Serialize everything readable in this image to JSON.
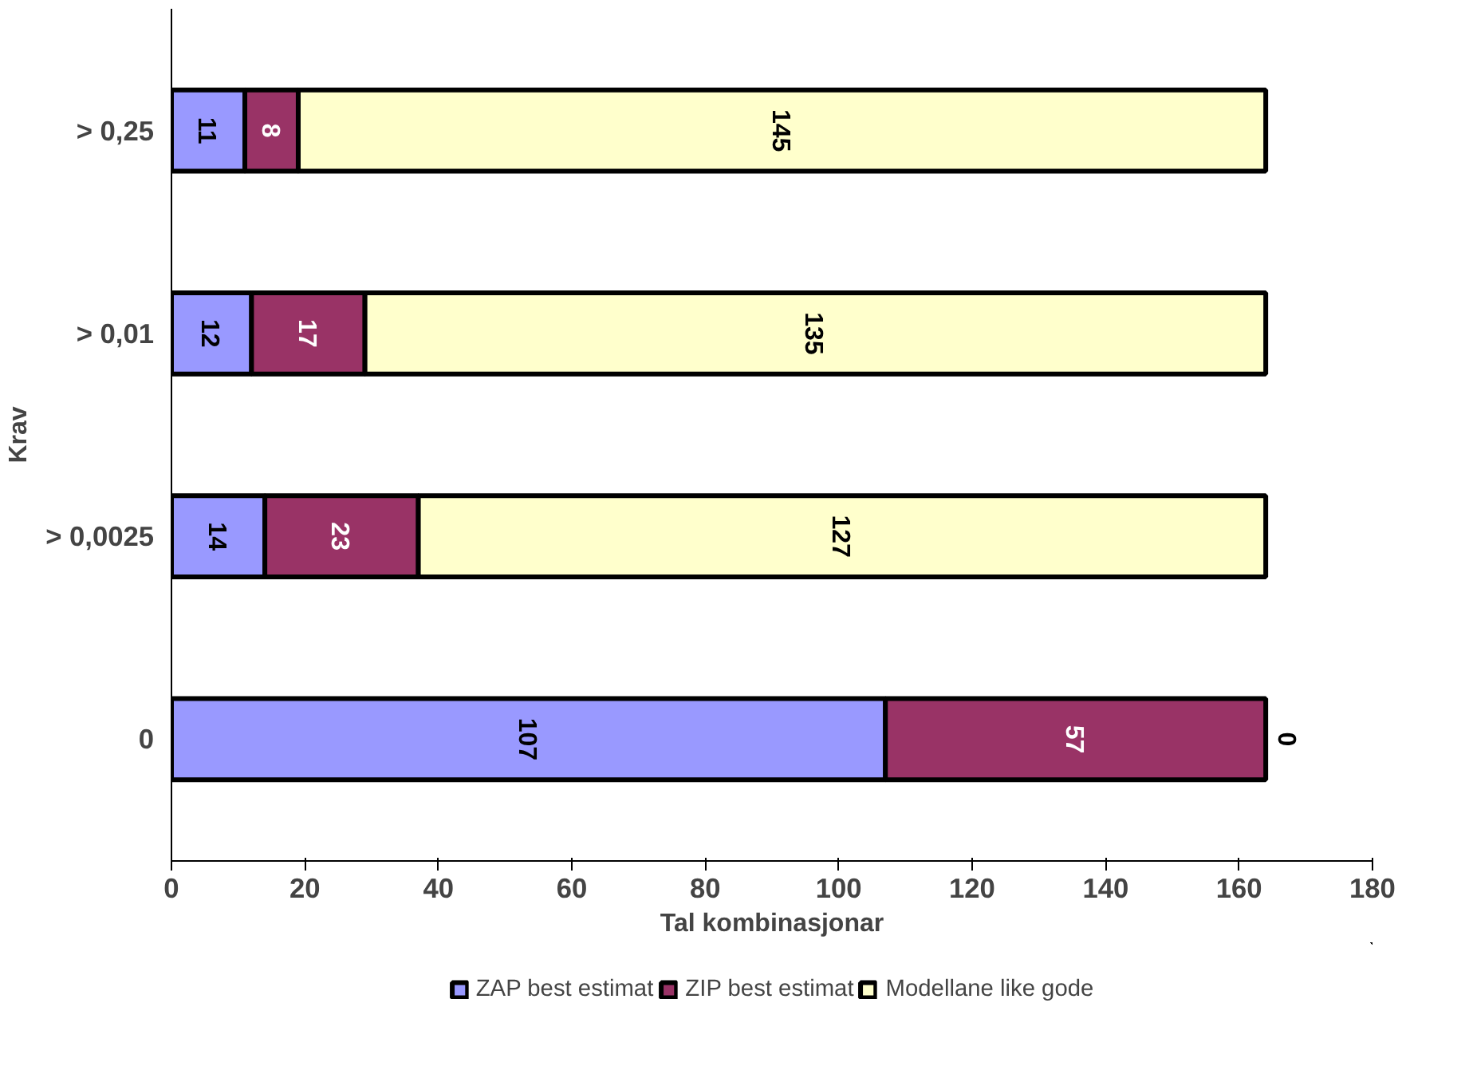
{
  "chart_data": {
    "type": "bar",
    "orientation": "horizontal",
    "stacked": true,
    "xlabel": "Tal kombinasjonar",
    "ylabel": "Krav",
    "categories": [
      "> 0,25",
      "> 0,01",
      "> 0,0025",
      "0"
    ],
    "series": [
      {
        "name": "ZAP best estimat",
        "color": "#9999ff",
        "values": [
          11,
          12,
          14,
          107
        ]
      },
      {
        "name": "ZIP best estimat",
        "color": "#993366",
        "values": [
          8,
          17,
          23,
          57
        ]
      },
      {
        "name": "Modellane like gode",
        "color": "#ffffcc",
        "values": [
          145,
          135,
          127,
          0
        ]
      }
    ],
    "xlim": [
      0,
      180
    ],
    "xticks": [
      0,
      20,
      40,
      60,
      80,
      100,
      120,
      140,
      160,
      180
    ],
    "data_labels": true,
    "legend": "bottom",
    "grid": false
  }
}
